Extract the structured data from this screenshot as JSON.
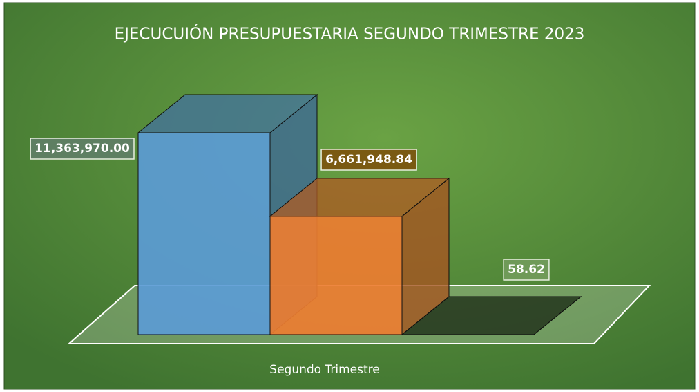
{
  "chart_data": {
    "type": "bar3d",
    "title": "EJECUCUIÓN PRESUPUESTARIA SEGUNDO TRIMESTRE 2023",
    "categories": [
      "Segundo Trimestre"
    ],
    "series": [
      {
        "color": "#5b9bd5",
        "values": [
          11363970.0
        ],
        "value_labels": [
          "11,363,970.00"
        ]
      },
      {
        "color": "#ed7d31",
        "values": [
          6661948.84
        ],
        "value_labels": [
          "6,661,948.84"
        ]
      },
      {
        "color": "#24391d",
        "values": [
          58.62
        ],
        "value_labels": [
          "58.62"
        ]
      }
    ]
  }
}
